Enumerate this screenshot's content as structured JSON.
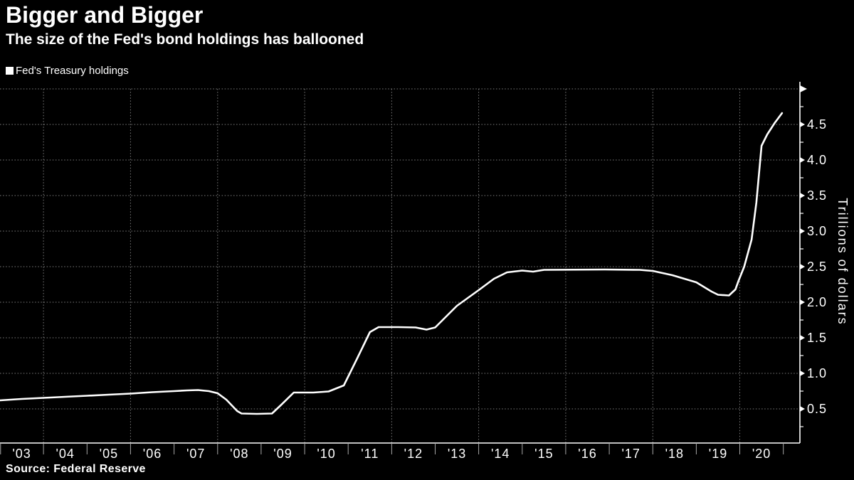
{
  "header": {
    "title": "Bigger and Bigger",
    "subtitle": "The size of the Fed's bond holdings has ballooned"
  },
  "footer": {
    "source": "Source: Federal Reserve"
  },
  "colors": {
    "background": "#000000",
    "line": "#ffffff",
    "text": "#ffffff",
    "grid": "#7d7d7d"
  },
  "chart_data": {
    "type": "line",
    "title": "Bigger and Bigger",
    "subtitle": "The size of the Fed's bond holdings has ballooned",
    "xlabel": "",
    "ylabel": "Trillions of dollars",
    "legend_position": "top-left",
    "grid": "dotted",
    "x_range": [
      2003,
      2021.38
    ],
    "y_range": [
      0,
      5.1
    ],
    "x_ticklabels": [
      "'03",
      "'04",
      "'05",
      "'06",
      "'07",
      "'08",
      "'09",
      "'10",
      "'11",
      "'12",
      "'13",
      "'14",
      "'15",
      "'16",
      "'17",
      "'18",
      "'19",
      "'20"
    ],
    "x_tick_years": [
      2003,
      2004,
      2005,
      2006,
      2007,
      2008,
      2009,
      2010,
      2011,
      2012,
      2013,
      2014,
      2015,
      2016,
      2017,
      2018,
      2019,
      2020,
      2021
    ],
    "xgrid_years": [
      2004,
      2006,
      2008,
      2010,
      2012,
      2014,
      2016,
      2018,
      2020
    ],
    "ygrid_values": [
      0.5,
      1.0,
      1.5,
      2.0,
      2.5,
      3.0,
      3.5,
      4.0,
      4.5,
      5.0
    ],
    "y_ticks": [
      {
        "value": 0.5,
        "label": "0.5"
      },
      {
        "value": 1.0,
        "label": "1.0"
      },
      {
        "value": 1.5,
        "label": "1.5"
      },
      {
        "value": 2.0,
        "label": "2.0"
      },
      {
        "value": 2.5,
        "label": "2.5"
      },
      {
        "value": 3.0,
        "label": "3.0"
      },
      {
        "value": 3.5,
        "label": "3.5"
      },
      {
        "value": 4.0,
        "label": "4.0"
      },
      {
        "value": 4.5,
        "label": "4.5"
      }
    ],
    "y_minor_ticks": [
      0.25,
      0.75,
      1.25,
      1.75,
      2.25,
      2.75,
      3.25,
      3.75,
      4.25,
      4.75
    ],
    "axis_arrow_value": 5.0,
    "series": [
      {
        "name": "Fed's Treasury holdings",
        "color": "#ffffff",
        "points": [
          [
            2003.0,
            0.62
          ],
          [
            2003.5,
            0.64
          ],
          [
            2004.0,
            0.655
          ],
          [
            2004.5,
            0.67
          ],
          [
            2005.0,
            0.685
          ],
          [
            2005.5,
            0.7
          ],
          [
            2006.0,
            0.715
          ],
          [
            2006.5,
            0.735
          ],
          [
            2007.0,
            0.75
          ],
          [
            2007.3,
            0.76
          ],
          [
            2007.55,
            0.765
          ],
          [
            2007.8,
            0.75
          ],
          [
            2008.0,
            0.72
          ],
          [
            2008.2,
            0.63
          ],
          [
            2008.45,
            0.47
          ],
          [
            2008.55,
            0.435
          ],
          [
            2008.9,
            0.43
          ],
          [
            2009.25,
            0.435
          ],
          [
            2009.45,
            0.55
          ],
          [
            2009.75,
            0.73
          ],
          [
            2010.2,
            0.73
          ],
          [
            2010.55,
            0.745
          ],
          [
            2010.9,
            0.83
          ],
          [
            2011.2,
            1.2
          ],
          [
            2011.5,
            1.58
          ],
          [
            2011.7,
            1.65
          ],
          [
            2012.15,
            1.65
          ],
          [
            2012.55,
            1.645
          ],
          [
            2012.8,
            1.615
          ],
          [
            2013.0,
            1.645
          ],
          [
            2013.5,
            1.95
          ],
          [
            2014.0,
            2.17
          ],
          [
            2014.35,
            2.33
          ],
          [
            2014.65,
            2.42
          ],
          [
            2015.0,
            2.445
          ],
          [
            2015.25,
            2.43
          ],
          [
            2015.5,
            2.455
          ],
          [
            2016.9,
            2.46
          ],
          [
            2017.7,
            2.455
          ],
          [
            2018.0,
            2.44
          ],
          [
            2018.45,
            2.38
          ],
          [
            2019.0,
            2.28
          ],
          [
            2019.35,
            2.15
          ],
          [
            2019.5,
            2.105
          ],
          [
            2019.75,
            2.095
          ],
          [
            2019.9,
            2.18
          ],
          [
            2019.97,
            2.3
          ],
          [
            2020.1,
            2.5
          ],
          [
            2020.27,
            2.88
          ],
          [
            2020.38,
            3.4
          ],
          [
            2020.5,
            4.2
          ],
          [
            2020.63,
            4.36
          ],
          [
            2020.8,
            4.52
          ],
          [
            2020.97,
            4.66
          ]
        ]
      }
    ]
  }
}
